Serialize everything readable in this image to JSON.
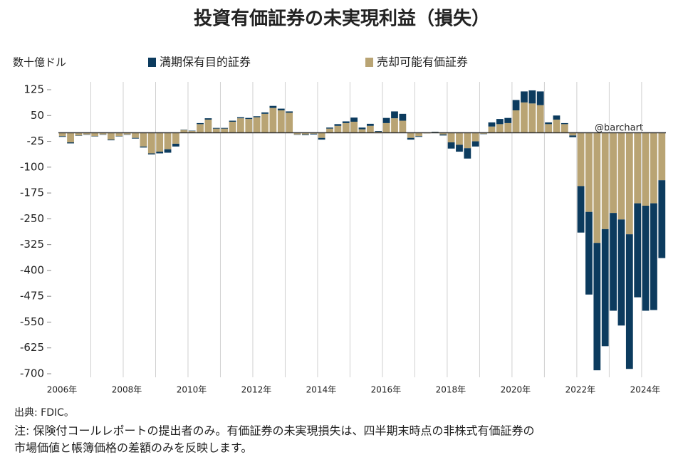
{
  "chart_data": {
    "type": "stacked_bar",
    "title": "投資有価証券の未実現利益（損失）",
    "y_unit": "数十億ドル",
    "annotation": "@barchart",
    "source": "出典: FDIC。",
    "note_lines": [
      "注: 保険付コールレポートの提出者のみ。有価証券の未実現損失は、四半期末時点の非株式有価証券の",
      "市場価値と帳簿価格の差額のみを反映します。"
    ],
    "categories": [
      "2006年",
      null,
      null,
      null,
      null,
      null,
      null,
      null,
      "2008年",
      null,
      null,
      null,
      null,
      null,
      null,
      null,
      "2010年",
      null,
      null,
      null,
      null,
      null,
      null,
      null,
      "2012年",
      null,
      null,
      null,
      null,
      null,
      null,
      null,
      "2014年",
      null,
      null,
      null,
      null,
      null,
      null,
      null,
      "2016年",
      null,
      null,
      null,
      null,
      null,
      null,
      null,
      "2018年",
      null,
      null,
      null,
      null,
      null,
      null,
      null,
      "2020年",
      null,
      null,
      null,
      null,
      null,
      null,
      null,
      "2022年",
      null,
      null,
      null,
      null,
      null,
      null,
      null,
      "2024年",
      null,
      null
    ],
    "series": [
      {
        "name": "売却可能有価証券",
        "color": "#b9a474",
        "values": [
          -10,
          -28,
          -8,
          -5,
          -10,
          -5,
          -20,
          -10,
          -5,
          -15,
          -40,
          -60,
          -55,
          -48,
          -32,
          8,
          5,
          25,
          38,
          12,
          12,
          32,
          42,
          40,
          45,
          55,
          72,
          65,
          58,
          -5,
          -5,
          -3,
          -15,
          12,
          20,
          28,
          32,
          10,
          20,
          3,
          28,
          42,
          35,
          -15,
          -10,
          -2,
          2,
          -5,
          -28,
          -35,
          -45,
          -25,
          -3,
          18,
          25,
          28,
          65,
          88,
          85,
          80,
          25,
          38,
          25,
          -8,
          -155,
          -230,
          -320,
          -280,
          -233,
          -252,
          -295,
          -205,
          -212,
          -205,
          -138
        ]
      },
      {
        "name": "満期保有目的証券",
        "color": "#0c3b5e",
        "values": [
          -2,
          -3,
          -1,
          -1,
          -1,
          -1,
          -2,
          -1,
          -1,
          -2,
          -3,
          -3,
          -5,
          -10,
          -8,
          1,
          1,
          3,
          4,
          2,
          2,
          3,
          3,
          3,
          3,
          4,
          6,
          5,
          4,
          -1,
          -2,
          -2,
          -5,
          3,
          5,
          5,
          12,
          5,
          6,
          2,
          15,
          20,
          20,
          -5,
          -2,
          0,
          1,
          -3,
          -18,
          -20,
          -30,
          -15,
          -1,
          12,
          15,
          15,
          30,
          32,
          38,
          40,
          5,
          12,
          3,
          -5,
          -135,
          -240,
          -370,
          -340,
          -284,
          -308,
          -391,
          -273,
          -305,
          -310,
          -226
        ]
      }
    ],
    "ylim": [
      -700,
      125
    ],
    "yticks": [
      125,
      50,
      -25,
      -100,
      -175,
      -250,
      -325,
      -400,
      -475,
      -550,
      -625,
      -700
    ]
  }
}
